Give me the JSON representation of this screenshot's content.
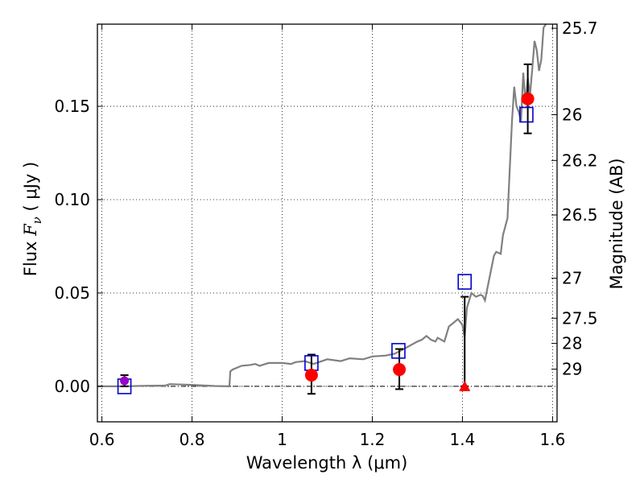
{
  "chart_data": {
    "type": "scatter",
    "xlabel": "Wavelength  λ (μm)",
    "ylabel_prefix": "Flux  ",
    "ylabel_symbol": "F",
    "ylabel_sub": "ν",
    "ylabel_suffix": "  ( μJy )",
    "right_label": "Magnitude (AB)",
    "xlim": [
      0.59,
      1.61
    ],
    "ylim": [
      -0.019,
      0.194
    ],
    "x_ticks": [
      {
        "value": 0.6,
        "label": "0.6"
      },
      {
        "value": 0.8,
        "label": "0.8"
      },
      {
        "value": 1.0,
        "label": "1"
      },
      {
        "value": 1.2,
        "label": "1.2"
      },
      {
        "value": 1.4,
        "label": "1.4"
      },
      {
        "value": 1.6,
        "label": "1.6"
      }
    ],
    "y_ticks": [
      {
        "value": 0.0,
        "label": "0.00"
      },
      {
        "value": 0.05,
        "label": "0.05"
      },
      {
        "value": 0.1,
        "label": "0.10"
      },
      {
        "value": 0.15,
        "label": "0.15"
      }
    ],
    "mag_ticks": [
      {
        "label": "25.7",
        "flux": 0.1918
      },
      {
        "label": "26",
        "flux": 0.1455
      },
      {
        "label": "26.2",
        "flux": 0.121
      },
      {
        "label": "26.5",
        "flux": 0.0918
      },
      {
        "label": "27",
        "flux": 0.0579
      },
      {
        "label": "27.5",
        "flux": 0.0365
      },
      {
        "label": "28",
        "flux": 0.023
      },
      {
        "label": "29",
        "flux": 0.0092
      }
    ],
    "grid": true,
    "colors": {
      "measured": "#ff0000",
      "model": "#0000cc",
      "sed": "#808080",
      "errorbar": "#000000",
      "first_point": "#9900cc"
    },
    "sed_curve": [
      [
        0.59,
        0.0
      ],
      [
        0.65,
        0.0
      ],
      [
        0.7,
        0.0003
      ],
      [
        0.74,
        0.0004
      ],
      [
        0.75,
        0.0012
      ],
      [
        0.8,
        0.0008
      ],
      [
        0.85,
        0.0002
      ],
      [
        0.883,
        0.0
      ],
      [
        0.885,
        0.008
      ],
      [
        0.89,
        0.009
      ],
      [
        0.91,
        0.011
      ],
      [
        0.93,
        0.0115
      ],
      [
        0.94,
        0.012
      ],
      [
        0.95,
        0.011
      ],
      [
        0.97,
        0.0125
      ],
      [
        1.0,
        0.0125
      ],
      [
        1.02,
        0.012
      ],
      [
        1.03,
        0.013
      ],
      [
        1.05,
        0.0135
      ],
      [
        1.07,
        0.012
      ],
      [
        1.1,
        0.0145
      ],
      [
        1.13,
        0.0135
      ],
      [
        1.15,
        0.015
      ],
      [
        1.18,
        0.0145
      ],
      [
        1.2,
        0.016
      ],
      [
        1.23,
        0.0165
      ],
      [
        1.25,
        0.0175
      ],
      [
        1.27,
        0.02
      ],
      [
        1.3,
        0.024
      ],
      [
        1.31,
        0.025
      ],
      [
        1.32,
        0.027
      ],
      [
        1.33,
        0.025
      ],
      [
        1.34,
        0.024
      ],
      [
        1.345,
        0.026
      ],
      [
        1.36,
        0.024
      ],
      [
        1.37,
        0.032
      ],
      [
        1.38,
        0.034
      ],
      [
        1.39,
        0.036
      ],
      [
        1.4,
        0.033
      ],
      [
        1.405,
        0.0265
      ],
      [
        1.41,
        0.042
      ],
      [
        1.42,
        0.05
      ],
      [
        1.43,
        0.048
      ],
      [
        1.44,
        0.049
      ],
      [
        1.445,
        0.0485
      ],
      [
        1.45,
        0.046
      ],
      [
        1.46,
        0.058
      ],
      [
        1.47,
        0.07
      ],
      [
        1.475,
        0.072
      ],
      [
        1.485,
        0.071
      ],
      [
        1.49,
        0.081
      ],
      [
        1.5,
        0.09
      ],
      [
        1.51,
        0.142
      ],
      [
        1.515,
        0.1605
      ],
      [
        1.52,
        0.15
      ],
      [
        1.525,
        0.147
      ],
      [
        1.53,
        0.142
      ],
      [
        1.535,
        0.168
      ],
      [
        1.54,
        0.152
      ],
      [
        1.545,
        0.165
      ],
      [
        1.55,
        0.156
      ],
      [
        1.555,
        0.17
      ],
      [
        1.56,
        0.185
      ],
      [
        1.565,
        0.18
      ],
      [
        1.57,
        0.169
      ],
      [
        1.575,
        0.175
      ],
      [
        1.58,
        0.192
      ],
      [
        1.585,
        0.194
      ]
    ],
    "measured_points": [
      {
        "x": 0.65,
        "y": 0.003,
        "err_low": 0.0,
        "err_high": 0.006
      },
      {
        "x": 1.065,
        "y": 0.006,
        "err_low": -0.004,
        "err_high": 0.017
      },
      {
        "x": 1.26,
        "y": 0.009,
        "err_low": -0.0015,
        "err_high": 0.02
      },
      {
        "x": 1.545,
        "y": 0.154,
        "err_low": 0.1355,
        "err_high": 0.1725
      }
    ],
    "upper_limits": [
      {
        "x": 1.405,
        "y": 0.0,
        "err_low": 0.0,
        "err_high": 0.048
      }
    ],
    "model_points": [
      {
        "x": 0.65,
        "y": 0.0
      },
      {
        "x": 1.065,
        "y": 0.0125
      },
      {
        "x": 1.258,
        "y": 0.019
      },
      {
        "x": 1.405,
        "y": 0.056
      },
      {
        "x": 1.542,
        "y": 0.1455
      }
    ]
  }
}
